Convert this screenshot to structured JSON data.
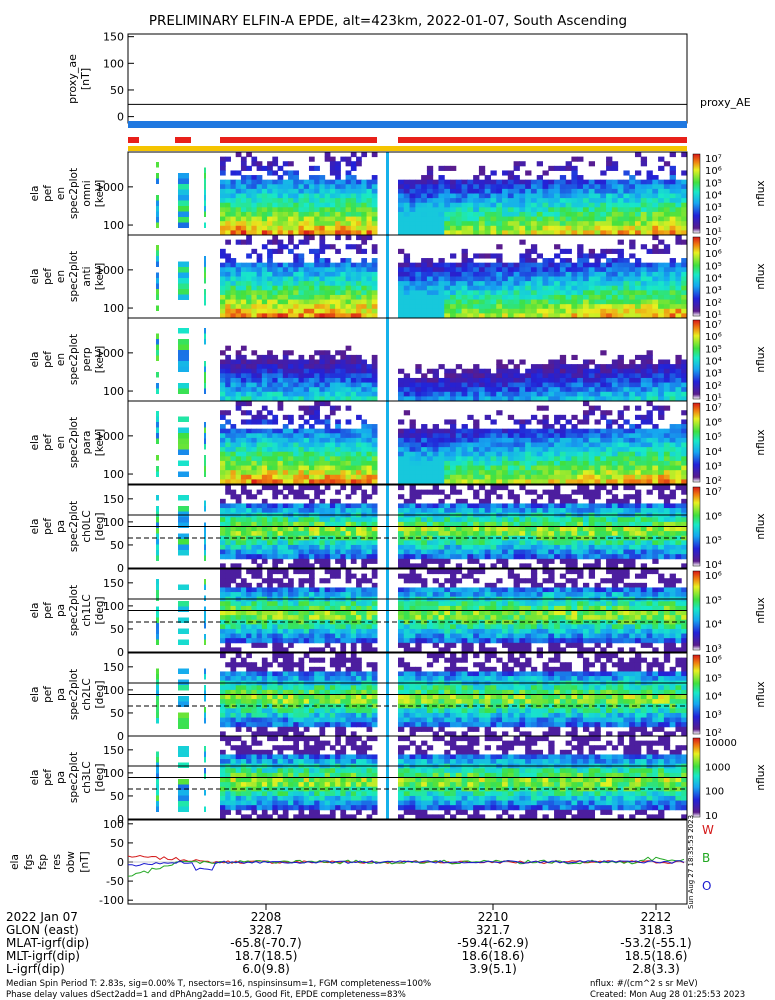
{
  "title": "PRELIMINARY ELFIN-A EPDE, alt=423km, 2022-01-07, South Ascending",
  "colors": {
    "science_zone_red": "#e8201a",
    "bar_blue": "#1f78e0",
    "bar_gold": "#f5c400",
    "field_w": "#d41818",
    "field_b": "#22a822",
    "field_o": "#1a1ad0"
  },
  "chart_data": [
    {
      "type": "line",
      "panel": "proxy_ae",
      "ylabel_lines": [
        "proxy_ae",
        "[nT]"
      ],
      "yticks": [
        "150",
        "100",
        "50",
        "0"
      ],
      "ylim": [
        -12,
        155
      ],
      "legend": "proxy_AE",
      "series": [
        {
          "name": "proxy_AE",
          "x": [
            0,
            1
          ],
          "values": [
            23,
            23
          ]
        }
      ]
    },
    {
      "type": "heatmap",
      "panel": "omni",
      "ylabel_lines": [
        "ela",
        "pef",
        "en",
        "spec2plot",
        "omni",
        "[keV]"
      ],
      "yticks": [
        "1000",
        "100"
      ],
      "colorbar": {
        "ticks": [
          "10⁷",
          "10⁶",
          "10⁵",
          "10⁴",
          "10³",
          "10²",
          "10¹"
        ],
        "label": "nflux"
      }
    },
    {
      "type": "heatmap",
      "panel": "anti",
      "ylabel_lines": [
        "ela",
        "pef",
        "en",
        "spec2plot",
        "anti",
        "[keV]"
      ],
      "yticks": [
        "1000",
        "100"
      ],
      "colorbar": {
        "ticks": [
          "10⁷",
          "10⁶",
          "10⁵",
          "10⁴",
          "10³",
          "10²",
          "10¹"
        ],
        "label": "nflux"
      }
    },
    {
      "type": "heatmap",
      "panel": "perp",
      "ylabel_lines": [
        "ela",
        "pef",
        "en",
        "spec2plot",
        "perp",
        "[keV]"
      ],
      "yticks": [
        "1000",
        "100"
      ],
      "colorbar": {
        "ticks": [
          "10⁷",
          "10⁶",
          "10⁵",
          "10⁴",
          "10³",
          "10²",
          "10¹"
        ],
        "label": "nflux"
      }
    },
    {
      "type": "heatmap",
      "panel": "para",
      "ylabel_lines": [
        "ela",
        "pef",
        "en",
        "spec2plot",
        "para",
        "[keV]"
      ],
      "yticks": [
        "1000",
        "100"
      ],
      "colorbar": {
        "ticks": [
          "10⁷",
          "10⁶",
          "10⁵",
          "10⁴",
          "10³",
          "10²"
        ],
        "label": "nflux"
      }
    },
    {
      "type": "heatmap",
      "panel": "ch0LC",
      "ylabel_lines": [
        "ela",
        "pef",
        "pa",
        "spec2plot",
        "ch0LC",
        "[deg]"
      ],
      "yticks": [
        "150",
        "100",
        "50",
        "0"
      ],
      "colorbar": {
        "ticks": [
          "10⁷",
          "10⁶",
          "10⁵",
          "10⁴"
        ],
        "label": "nflux"
      }
    },
    {
      "type": "heatmap",
      "panel": "ch1LC",
      "ylabel_lines": [
        "ela",
        "pef",
        "pa",
        "spec2plot",
        "ch1LC",
        "[deg]"
      ],
      "yticks": [
        "150",
        "100",
        "50",
        "0"
      ],
      "colorbar": {
        "ticks": [
          "10⁶",
          "10⁵",
          "10⁴",
          "10³"
        ],
        "label": "nflux"
      }
    },
    {
      "type": "heatmap",
      "panel": "ch2LC",
      "ylabel_lines": [
        "ela",
        "pef",
        "pa",
        "spec2plot",
        "ch2LC",
        "[deg]"
      ],
      "yticks": [
        "150",
        "100",
        "50",
        "0"
      ],
      "colorbar": {
        "ticks": [
          "10⁶",
          "10⁵",
          "10⁴",
          "10³",
          "10²"
        ],
        "label": "nflux"
      }
    },
    {
      "type": "heatmap",
      "panel": "ch3LC",
      "ylabel_lines": [
        "ela",
        "pef",
        "pa",
        "spec2plot",
        "ch3LC",
        "[deg]"
      ],
      "yticks": [
        "150",
        "100",
        "50",
        "0"
      ],
      "colorbar": {
        "ticks": [
          "10000",
          "1000",
          "100",
          "10"
        ],
        "label": "nflux"
      }
    },
    {
      "type": "line",
      "panel": "fgs",
      "ylabel_lines": [
        "ela",
        "fgs",
        "fsp",
        "res",
        "obw",
        "[nT]"
      ],
      "yticks": [
        "100",
        "50",
        "0",
        "-50",
        "-100"
      ],
      "ylim": [
        -110,
        110
      ],
      "legend": [
        "W",
        "B",
        "O"
      ],
      "side_note": "Sun Aug 27 18:35:53 2023"
    }
  ],
  "footer": {
    "rows": [
      {
        "label": "2022 Jan 07",
        "c1": "2208",
        "c2": "2210",
        "c3": "2212"
      },
      {
        "label": "GLON (east)",
        "c1": "328.7",
        "c2": "321.7",
        "c3": "318.3"
      },
      {
        "label": "MLAT-igrf(dip)",
        "c1": "-65.8(-70.7)",
        "c2": "-59.4(-62.9)",
        "c3": "-53.2(-55.1)"
      },
      {
        "label": "MLT-igrf(dip)",
        "c1": "18.7(18.5)",
        "c2": "18.6(18.6)",
        "c3": "18.5(18.6)"
      },
      {
        "label": "L-igrf(dip)",
        "c1": "6.0(9.8)",
        "c2": "3.9(5.1)",
        "c3": "2.8(3.3)"
      }
    ],
    "note_left_1": "Median Spin Period T: 2.83s, sig=0.00% T, nsectors=16, nspinsinsum=1, FGM completeness=100%",
    "note_left_2": "Phase delay values dSect2add=1 and dPhAng2add=10.5, Good Fit, EPDE completeness=83%",
    "note_right_1": "nflux: #/(cm^2 s sr MeV)",
    "note_right_2": "Created: Mon Aug 28 01:25:53 2023"
  }
}
